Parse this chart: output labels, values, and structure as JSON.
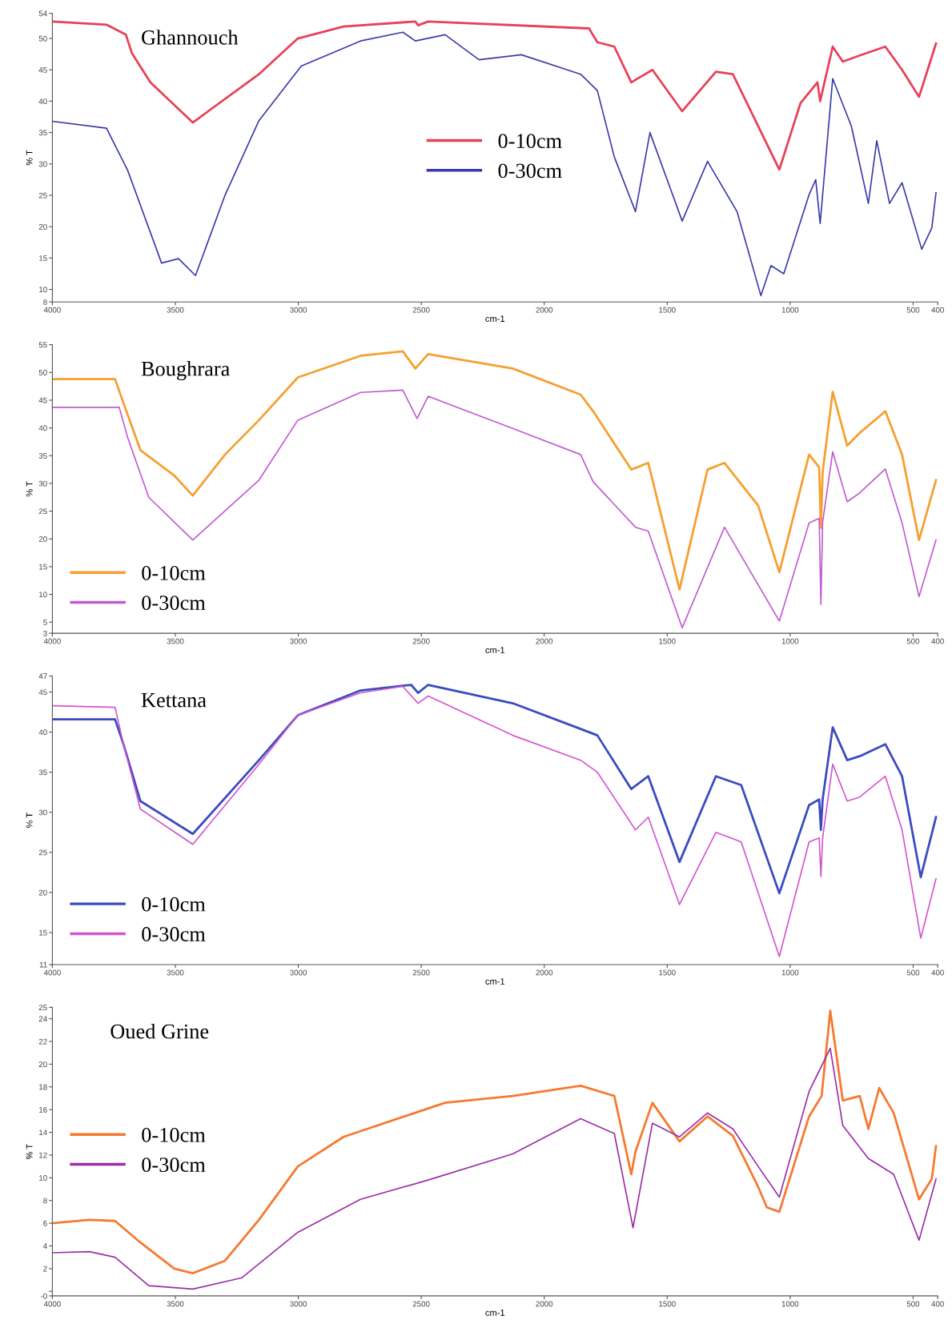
{
  "chart_data": [
    {
      "type": "line",
      "title": "Ghannouch",
      "xlabel": "cm-1",
      "ylabel": "% T",
      "xlim": [
        4000,
        400
      ],
      "xticks": [
        4000,
        3500,
        3000,
        2500,
        2000,
        1500,
        1000,
        500,
        400
      ],
      "ylim": [
        8,
        54
      ],
      "yticks": [
        54,
        50,
        45,
        40,
        35,
        30,
        25,
        20,
        15,
        10,
        8
      ],
      "legend": "center",
      "grid": false,
      "series": [
        {
          "name": "0-10cm",
          "color": "#e8415a",
          "x": [
            4000,
            3780,
            3701,
            3676,
            3601,
            3429,
            3160,
            3002,
            2816,
            2524,
            2513,
            2472,
            1818,
            1784,
            1715,
            1646,
            1560,
            1439,
            1302,
            1233,
            1044,
            958,
            889,
            878,
            827,
            786,
            717,
            613,
            545,
            476,
            441,
            407
          ],
          "values": [
            52.7,
            52.2,
            50.6,
            47.6,
            43,
            36.6,
            44.3,
            50,
            51.9,
            52.7,
            52.1,
            52.7,
            51.6,
            49.4,
            48.7,
            43,
            45,
            38.4,
            44.7,
            44.3,
            29.1,
            39.7,
            43,
            40,
            48.7,
            46.3,
            47.3,
            48.7,
            45,
            40.7,
            45,
            49.2
          ]
        },
        {
          "name": "0-30cm",
          "color": "#3b3bab",
          "x": [
            4000,
            3780,
            3694,
            3556,
            3487,
            3418,
            3298,
            3160,
            2988,
            2747,
            2575,
            2524,
            2403,
            2265,
            2093,
            1852,
            1784,
            1715,
            1629,
            1570,
            1439,
            1336,
            1216,
            1119,
            1078,
            1026,
            923,
            896,
            878,
            827,
            751,
            682,
            648,
            596,
            545,
            465,
            424,
            407
          ],
          "values": [
            36.8,
            35.7,
            29,
            14.2,
            14.9,
            12.2,
            25,
            36.9,
            45.6,
            49.6,
            51,
            49.6,
            50.6,
            46.6,
            47.4,
            44.3,
            41.7,
            31.1,
            22.4,
            35,
            20.9,
            30.4,
            22.4,
            9,
            13.8,
            12.5,
            25.1,
            27.5,
            20.5,
            43.6,
            36,
            23.7,
            33.7,
            23.7,
            27,
            16.4,
            19.8,
            25.4
          ]
        }
      ]
    },
    {
      "type": "line",
      "title": "Boughrara",
      "xlabel": "cm-1",
      "ylabel": "% T",
      "xlim": [
        4000,
        400
      ],
      "xticks": [
        4000,
        3500,
        3000,
        2500,
        2000,
        1500,
        1000,
        500,
        400
      ],
      "ylim": [
        3,
        55
      ],
      "yticks": [
        55,
        50,
        45,
        40,
        35,
        30,
        25,
        20,
        15,
        10,
        5,
        3
      ],
      "legend": "lower left",
      "grid": false,
      "series": [
        {
          "name": "0-10cm",
          "color": "#f5a030",
          "x": [
            4000,
            3745,
            3711,
            3642,
            3504,
            3429,
            3298,
            3160,
            3002,
            2747,
            2575,
            2524,
            2472,
            2128,
            1852,
            1801,
            1646,
            1577,
            1450,
            1336,
            1267,
            1130,
            1044,
            923,
            882,
            875,
            868,
            827,
            768,
            717,
            613,
            545,
            476,
            407
          ],
          "values": [
            48.8,
            48.8,
            44.5,
            36,
            31.4,
            27.8,
            35.2,
            41.4,
            49.1,
            53,
            53.8,
            50.7,
            53.3,
            50.7,
            46,
            43,
            32.5,
            33.7,
            10.9,
            32.5,
            33.7,
            26,
            14,
            35.2,
            32.9,
            22,
            32,
            46.5,
            36.8,
            39.1,
            43,
            35.2,
            19.8,
            30.6
          ]
        },
        {
          "name": "0-30cm",
          "color": "#c05cd0",
          "x": [
            4000,
            3728,
            3694,
            3608,
            3429,
            3160,
            3002,
            2747,
            2575,
            2517,
            2472,
            2128,
            1852,
            1801,
            1629,
            1577,
            1439,
            1267,
            1044,
            923,
            882,
            875,
            868,
            827,
            768,
            717,
            613,
            545,
            476,
            407
          ],
          "values": [
            43.7,
            43.7,
            38.3,
            27.5,
            19.8,
            30.6,
            41.4,
            46.4,
            46.8,
            41.7,
            45.7,
            39.9,
            35.2,
            30.3,
            22.1,
            21.4,
            4,
            22.1,
            5.2,
            22.9,
            23.7,
            8.2,
            23,
            35.7,
            26.7,
            28.3,
            32.6,
            22.9,
            9.6,
            19.8
          ]
        }
      ]
    },
    {
      "type": "line",
      "title": "Kettana",
      "xlabel": "cm-1",
      "ylabel": "% T",
      "xlim": [
        4000,
        400
      ],
      "xticks": [
        4000,
        3500,
        3000,
        2500,
        2000,
        1500,
        1000,
        500,
        400
      ],
      "ylim": [
        11,
        47
      ],
      "yticks": [
        47,
        45,
        40,
        35,
        30,
        25,
        20,
        15,
        11
      ],
      "legend": "lower left",
      "grid": false,
      "series": [
        {
          "name": "0-10cm",
          "color": "#3a4bc0",
          "x": [
            4000,
            3745,
            3711,
            3642,
            3429,
            3160,
            3002,
            2747,
            2541,
            2513,
            2472,
            2128,
            1852,
            1784,
            1646,
            1577,
            1450,
            1302,
            1199,
            1044,
            923,
            882,
            875,
            868,
            827,
            768,
            717,
            613,
            545,
            469,
            407
          ],
          "values": [
            41.6,
            41.6,
            38.5,
            31.4,
            27.3,
            36.5,
            42.1,
            45.2,
            45.9,
            44.9,
            45.9,
            43.6,
            40.4,
            39.6,
            32.9,
            34.5,
            23.8,
            34.5,
            33.4,
            19.9,
            30.9,
            31.6,
            27.8,
            31.6,
            40.6,
            36.5,
            37,
            38.5,
            34.5,
            21.9,
            29.4
          ]
        },
        {
          "name": "0-30cm",
          "color": "#d455d0",
          "x": [
            4000,
            3745,
            3711,
            3642,
            3429,
            3160,
            3002,
            2747,
            2575,
            2513,
            2472,
            2128,
            1852,
            1784,
            1629,
            1577,
            1450,
            1302,
            1199,
            1044,
            923,
            882,
            875,
            868,
            827,
            768,
            717,
            613,
            545,
            469,
            407
          ],
          "values": [
            43.3,
            43.1,
            38.5,
            30.4,
            26,
            36,
            42.1,
            44.9,
            45.7,
            43.6,
            44.5,
            39.6,
            36.5,
            35,
            27.8,
            29.4,
            18.5,
            27.5,
            26.3,
            12,
            26.3,
            26.8,
            22,
            26.8,
            36,
            31.4,
            31.9,
            34.5,
            27.8,
            14.3,
            21.7
          ]
        }
      ]
    },
    {
      "type": "line",
      "title": "Oued Grine",
      "xlabel": "cm-1",
      "ylabel": "% T",
      "xlim": [
        4000,
        400
      ],
      "xticks": [
        4000,
        3500,
        3000,
        2500,
        2000,
        1500,
        1000,
        500,
        400
      ],
      "ylim": [
        -0.4,
        25
      ],
      "yticks": [
        25,
        24,
        22,
        20,
        18,
        16,
        14,
        12,
        10,
        8,
        6,
        4,
        2,
        {
          "value": 0,
          "label": null
        },
        {
          "value": -0.4,
          "label": "-0"
        }
      ],
      "legend": "center left",
      "grid": false,
      "series": [
        {
          "name": "0-10cm",
          "color": "#f57a30",
          "x": [
            4000,
            3849,
            3745,
            3642,
            3504,
            3429,
            3298,
            3160,
            3002,
            2816,
            2541,
            2403,
            2128,
            1852,
            1715,
            1646,
            1629,
            1560,
            1450,
            1336,
            1233,
            1130,
            1095,
            1044,
            923,
            872,
            837,
            786,
            717,
            682,
            638,
            579,
            476,
            424,
            407
          ],
          "values": [
            6,
            6.3,
            6.2,
            4.3,
            2,
            1.6,
            2.7,
            6.3,
            11,
            13.6,
            15.6,
            16.6,
            17.2,
            18.1,
            17.2,
            10.3,
            12.3,
            16.6,
            13.2,
            15.4,
            13.7,
            9.2,
            7.4,
            7,
            15.4,
            17.2,
            24.7,
            16.8,
            17.2,
            14.3,
            17.9,
            15.7,
            8.1,
            9.9,
            12.8
          ]
        },
        {
          "name": "0-30cm",
          "color": "#9b2fa8",
          "x": [
            4000,
            3849,
            3745,
            3608,
            3429,
            3229,
            3002,
            2747,
            2472,
            2128,
            1852,
            1715,
            1639,
            1560,
            1450,
            1336,
            1233,
            1130,
            1044,
            923,
            837,
            786,
            682,
            579,
            476,
            407
          ],
          "values": [
            3.4,
            3.5,
            3,
            0.5,
            0.2,
            1.2,
            5.2,
            8.1,
            9.8,
            12.1,
            15.2,
            13.9,
            5.6,
            14.8,
            13.6,
            15.7,
            14.3,
            11,
            8.3,
            17.6,
            21.4,
            14.6,
            11.7,
            10.3,
            4.5,
            9.9
          ]
        }
      ]
    }
  ]
}
